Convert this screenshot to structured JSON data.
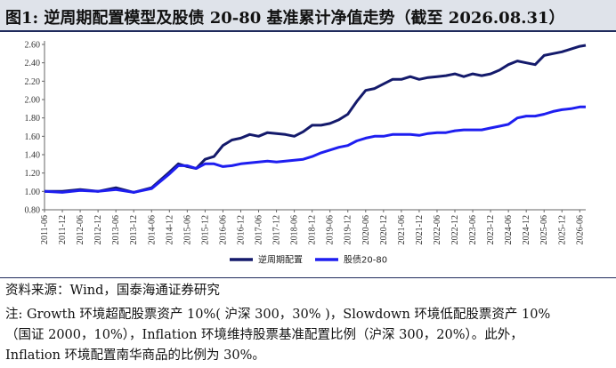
{
  "header": {
    "title": "图1:  逆周期配置模型及股债 20-80 基准累计净值走势（截至 2026.08.31）"
  },
  "colors": {
    "series1": "#141a6b",
    "series2": "#1e1ef0",
    "title_bg": "#dfe3ea",
    "rule": "#1f2a5c"
  },
  "footer": {
    "source": "资料来源：Wind，国泰海通证券研究",
    "note_line1": "注: Growth 环境超配股票资产 10%( 沪深 300，30% )，Slowdown 环境低配股票资产 10%",
    "note_line2": "（国证 2000，10%），Inflation 环境维持股票基准配置比例（沪深 300，20%）。此外，",
    "note_line3": "Inflation 环境配置南华商品的比例为 30%。"
  },
  "chart_data": {
    "type": "line",
    "title": "逆周期配置模型及股债 20-80 基准累计净值走势（截至 2026.08.31）",
    "xlabel": "",
    "ylabel": "",
    "ylim": [
      0.8,
      2.6
    ],
    "yticks": [
      "0.80",
      "1.00",
      "1.20",
      "1.40",
      "1.60",
      "1.80",
      "2.00",
      "2.20",
      "2.40",
      "2.60"
    ],
    "xticks": [
      "2011-06",
      "2011-12",
      "2012-06",
      "2012-12",
      "2013-06",
      "2013-12",
      "2014-06",
      "2014-12",
      "2015-06",
      "2015-12",
      "2016-06",
      "2016-12",
      "2017-06",
      "2017-12",
      "2018-06",
      "2018-12",
      "2019-06",
      "2019-12",
      "2020-06",
      "2020-12",
      "2021-06",
      "2021-12",
      "2022-06",
      "2022-12",
      "2023-06",
      "2023-12",
      "2024-06",
      "2024-12",
      "2025-06",
      "2025-12",
      "2026-06"
    ],
    "grid": false,
    "legend_position": "bottom",
    "x": [
      "2011-06",
      "2011-12",
      "2012-06",
      "2012-12",
      "2013-06",
      "2013-12",
      "2014-06",
      "2014-12",
      "2015-03",
      "2015-06",
      "2015-09",
      "2015-12",
      "2016-03",
      "2016-06",
      "2016-09",
      "2016-12",
      "2017-03",
      "2017-06",
      "2017-09",
      "2017-12",
      "2018-03",
      "2018-06",
      "2018-09",
      "2018-12",
      "2019-03",
      "2019-06",
      "2019-09",
      "2019-12",
      "2020-03",
      "2020-06",
      "2020-09",
      "2020-12",
      "2021-03",
      "2021-06",
      "2021-09",
      "2021-12",
      "2022-03",
      "2022-06",
      "2022-09",
      "2022-12",
      "2023-03",
      "2023-06",
      "2023-09",
      "2023-12",
      "2024-03",
      "2024-06",
      "2024-09",
      "2024-12",
      "2025-03",
      "2025-06",
      "2025-09",
      "2025-12",
      "2026-03",
      "2026-06",
      "2026-08"
    ],
    "series": [
      {
        "name": "逆周期配置",
        "values": [
          1.0,
          1.0,
          1.02,
          1.0,
          1.04,
          0.99,
          1.04,
          1.21,
          1.3,
          1.27,
          1.25,
          1.35,
          1.38,
          1.5,
          1.56,
          1.58,
          1.62,
          1.6,
          1.64,
          1.63,
          1.62,
          1.6,
          1.65,
          1.72,
          1.72,
          1.74,
          1.78,
          1.84,
          1.98,
          2.1,
          2.12,
          2.17,
          2.22,
          2.22,
          2.25,
          2.22,
          2.24,
          2.25,
          2.26,
          2.28,
          2.25,
          2.28,
          2.26,
          2.28,
          2.32,
          2.38,
          2.42,
          2.4,
          2.38,
          2.48,
          2.5,
          2.52,
          2.55,
          2.58,
          2.59
        ]
      },
      {
        "name": "股债20-80",
        "values": [
          1.0,
          0.99,
          1.01,
          1.0,
          1.02,
          0.99,
          1.03,
          1.19,
          1.28,
          1.28,
          1.25,
          1.3,
          1.3,
          1.27,
          1.28,
          1.3,
          1.31,
          1.32,
          1.33,
          1.32,
          1.33,
          1.34,
          1.35,
          1.38,
          1.42,
          1.45,
          1.48,
          1.5,
          1.55,
          1.58,
          1.6,
          1.6,
          1.62,
          1.62,
          1.62,
          1.61,
          1.63,
          1.64,
          1.64,
          1.66,
          1.67,
          1.67,
          1.67,
          1.69,
          1.71,
          1.73,
          1.8,
          1.82,
          1.82,
          1.84,
          1.87,
          1.89,
          1.9,
          1.92,
          1.92
        ]
      }
    ]
  }
}
